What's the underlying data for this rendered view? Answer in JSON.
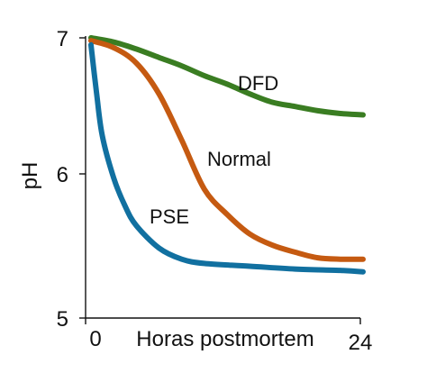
{
  "chart_data": {
    "type": "line",
    "title": "",
    "xlabel": "Horas postmortem",
    "ylabel": "pH",
    "xlim": [
      0,
      24
    ],
    "ylim": [
      5,
      7
    ],
    "x_ticks": [
      "0",
      "24"
    ],
    "y_ticks": [
      "5",
      "6",
      "7"
    ],
    "grid": false,
    "legend": "none",
    "series": [
      {
        "name": "DFD",
        "color": "#3a7d22",
        "x": [
          0,
          2,
          4,
          6,
          8,
          10,
          12,
          14,
          16,
          18,
          20,
          22,
          24
        ],
        "y": [
          7.0,
          6.97,
          6.92,
          6.86,
          6.8,
          6.73,
          6.67,
          6.6,
          6.54,
          6.51,
          6.48,
          6.46,
          6.45
        ]
      },
      {
        "name": "Normal",
        "color": "#c55a11",
        "x": [
          0,
          2,
          4,
          6,
          8,
          10,
          12,
          14,
          16,
          18,
          20,
          22,
          24
        ],
        "y": [
          6.98,
          6.93,
          6.82,
          6.6,
          6.27,
          5.92,
          5.74,
          5.6,
          5.52,
          5.47,
          5.43,
          5.42,
          5.42
        ]
      },
      {
        "name": "PSE",
        "color": "#1170a0",
        "x": [
          0,
          0.5,
          1,
          2,
          3,
          4,
          6,
          8,
          10,
          14,
          18,
          22,
          24
        ],
        "y": [
          6.95,
          6.6,
          6.3,
          6.0,
          5.8,
          5.66,
          5.5,
          5.42,
          5.39,
          5.37,
          5.35,
          5.34,
          5.33
        ]
      }
    ]
  }
}
